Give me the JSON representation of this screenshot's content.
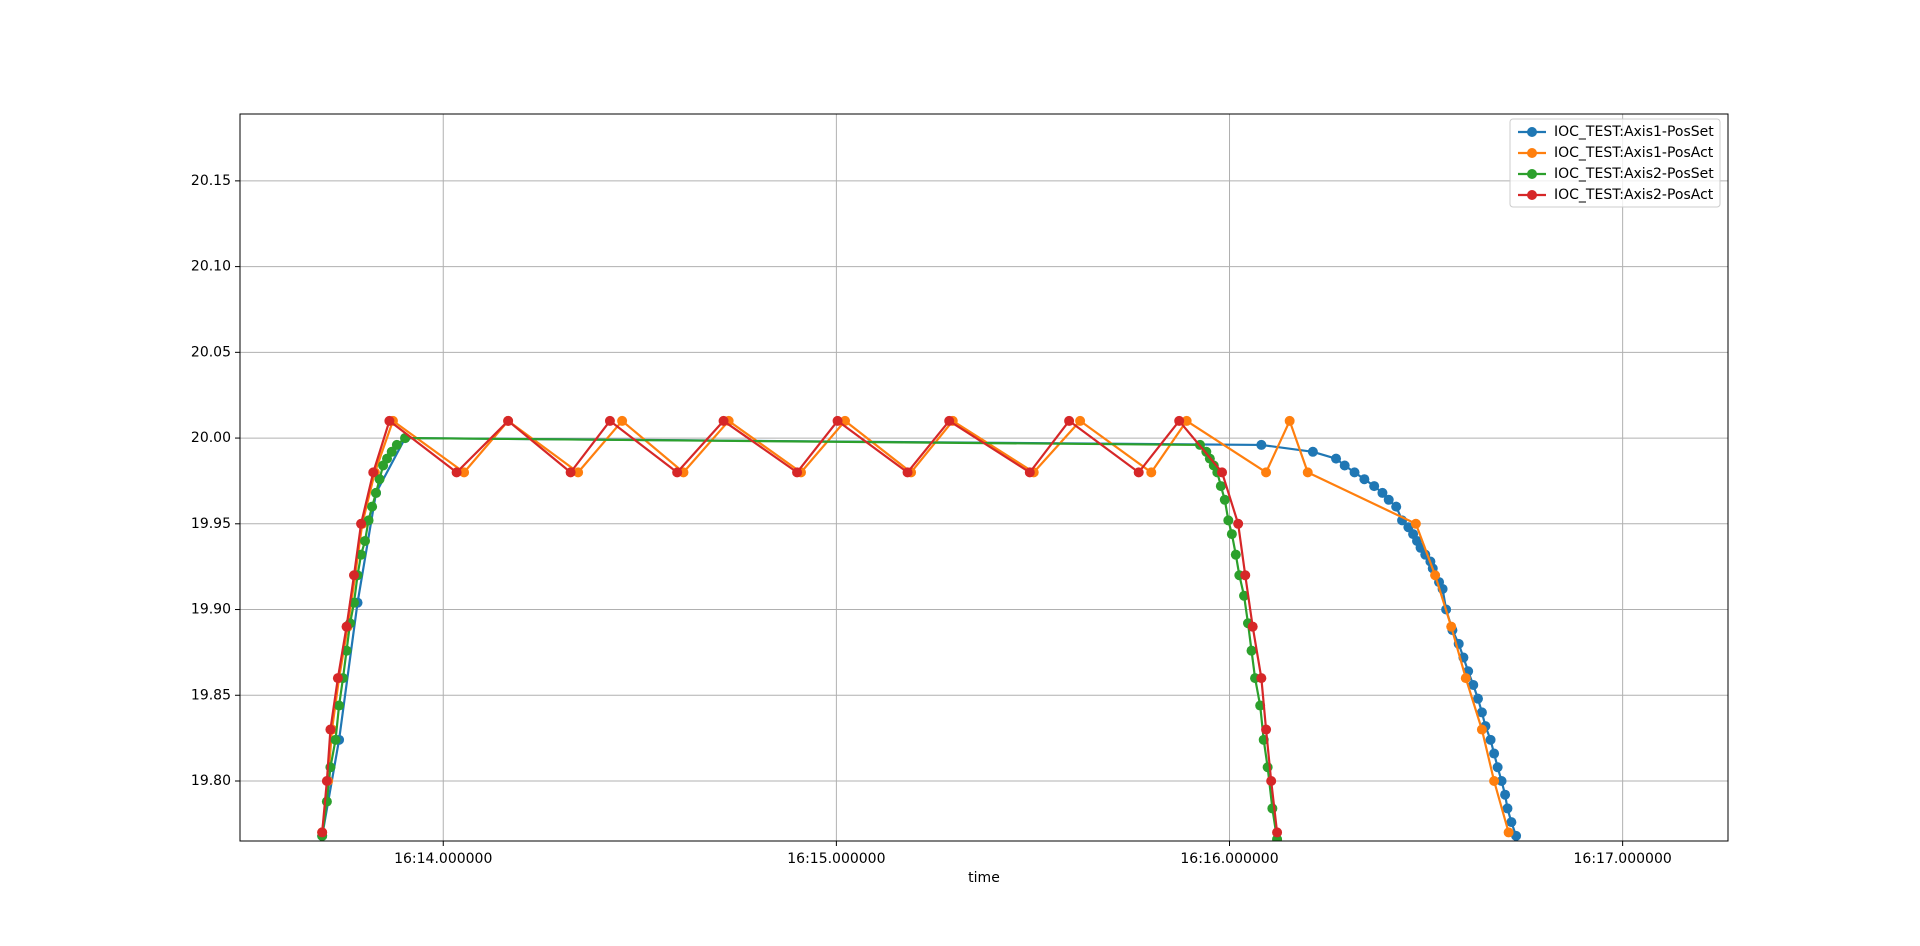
{
  "chart_data": {
    "type": "line",
    "xlabel": "time",
    "xlim": [
      973.483,
      977.268
    ],
    "ylim": [
      19.765,
      20.189
    ],
    "xticks": [
      {
        "value": 974,
        "label": "16:14.000000"
      },
      {
        "value": 975,
        "label": "16:15.000000"
      },
      {
        "value": 976,
        "label": "16:16.000000"
      },
      {
        "value": 977,
        "label": "16:17.000000"
      }
    ],
    "yticks": [
      {
        "value": 19.8,
        "label": "19.80"
      },
      {
        "value": 19.85,
        "label": "19.85"
      },
      {
        "value": 19.9,
        "label": "19.90"
      },
      {
        "value": 19.95,
        "label": "19.95"
      },
      {
        "value": 20.0,
        "label": "20.00"
      },
      {
        "value": 20.05,
        "label": "20.05"
      },
      {
        "value": 20.1,
        "label": "20.10"
      },
      {
        "value": 20.15,
        "label": "20.15"
      }
    ],
    "grid": true,
    "legend": "upper right",
    "series": [
      {
        "name": "IOC_TEST:Axis1-PosSet",
        "color": "#1f77b4",
        "x": [
          973.692,
          973.735,
          973.782,
          973.829,
          973.903,
          976.081,
          976.212,
          976.271,
          976.293,
          976.318,
          976.343,
          976.368,
          976.389,
          976.405,
          976.424,
          976.439,
          976.455,
          976.467,
          976.477,
          976.486,
          976.498,
          976.511,
          976.517,
          976.533,
          976.542,
          976.551,
          976.567,
          976.583,
          976.595,
          976.607,
          976.62,
          976.632,
          976.642,
          976.651,
          976.664,
          976.673,
          976.682,
          976.692,
          976.701,
          976.707,
          976.717,
          976.729
        ],
        "values": [
          19.768,
          19.824,
          19.904,
          19.968,
          20.0,
          19.996,
          19.992,
          19.988,
          19.984,
          19.98,
          19.976,
          19.972,
          19.968,
          19.964,
          19.96,
          19.952,
          19.948,
          19.944,
          19.94,
          19.936,
          19.932,
          19.928,
          19.924,
          19.916,
          19.912,
          19.9,
          19.888,
          19.88,
          19.872,
          19.864,
          19.856,
          19.848,
          19.84,
          19.832,
          19.824,
          19.816,
          19.808,
          19.8,
          19.792,
          19.784,
          19.776,
          19.768
        ]
      },
      {
        "name": "IOC_TEST:Axis1-PosAct",
        "color": "#ff7f0e",
        "x": [
          973.692,
          973.707,
          973.717,
          973.735,
          973.757,
          973.776,
          973.794,
          973.826,
          973.872,
          974.053,
          974.165,
          974.343,
          974.455,
          974.611,
          974.726,
          974.91,
          975.022,
          975.19,
          975.296,
          975.502,
          975.62,
          975.801,
          975.891,
          976.093,
          976.153,
          976.199,
          976.474,
          976.523,
          976.564,
          976.601,
          976.642,
          976.673,
          976.71
        ],
        "values": [
          19.77,
          19.8,
          19.83,
          19.86,
          19.89,
          19.92,
          19.95,
          19.98,
          20.01,
          19.98,
          20.01,
          19.98,
          20.01,
          19.98,
          20.01,
          19.98,
          20.01,
          19.98,
          20.01,
          19.98,
          20.01,
          19.98,
          20.01,
          19.98,
          20.01,
          19.98,
          19.95,
          19.92,
          19.89,
          19.86,
          19.83,
          19.8,
          19.77
        ]
      },
      {
        "name": "IOC_TEST:Axis2-PosSet",
        "color": "#2ca02c",
        "x": [
          973.692,
          973.704,
          973.713,
          973.726,
          973.735,
          973.745,
          973.754,
          973.763,
          973.773,
          973.782,
          973.791,
          973.801,
          973.81,
          973.819,
          973.829,
          973.838,
          973.847,
          973.857,
          973.869,
          973.882,
          973.903,
          975.925,
          975.941,
          975.95,
          975.96,
          975.969,
          975.978,
          975.988,
          975.997,
          976.006,
          976.016,
          976.025,
          976.037,
          976.047,
          976.056,
          976.065,
          976.078,
          976.087,
          976.097,
          976.109,
          976.121
        ],
        "values": [
          19.768,
          19.788,
          19.808,
          19.824,
          19.844,
          19.86,
          19.876,
          19.892,
          19.904,
          19.92,
          19.932,
          19.94,
          19.952,
          19.96,
          19.968,
          19.976,
          19.984,
          19.988,
          19.992,
          19.996,
          20.0,
          19.996,
          19.992,
          19.988,
          19.984,
          19.98,
          19.972,
          19.964,
          19.952,
          19.944,
          19.932,
          19.92,
          19.908,
          19.892,
          19.876,
          19.86,
          19.844,
          19.824,
          19.808,
          19.784,
          19.766
        ]
      },
      {
        "name": "IOC_TEST:Axis2-PosAct",
        "color": "#d62728",
        "x": [
          973.692,
          973.704,
          973.713,
          973.732,
          973.754,
          973.773,
          973.791,
          973.822,
          973.863,
          974.034,
          974.165,
          974.324,
          974.424,
          974.595,
          974.713,
          974.9,
          975.003,
          975.181,
          975.287,
          975.492,
          975.592,
          975.769,
          975.872,
          975.981,
          976.022,
          976.04,
          976.059,
          976.081,
          976.093,
          976.106,
          976.121
        ],
        "values": [
          19.77,
          19.8,
          19.83,
          19.86,
          19.89,
          19.92,
          19.95,
          19.98,
          20.01,
          19.98,
          20.01,
          19.98,
          20.01,
          19.98,
          20.01,
          19.98,
          20.01,
          19.98,
          20.01,
          19.98,
          20.01,
          19.98,
          20.01,
          19.98,
          19.95,
          19.92,
          19.89,
          19.86,
          19.83,
          19.8,
          19.77
        ]
      }
    ]
  }
}
